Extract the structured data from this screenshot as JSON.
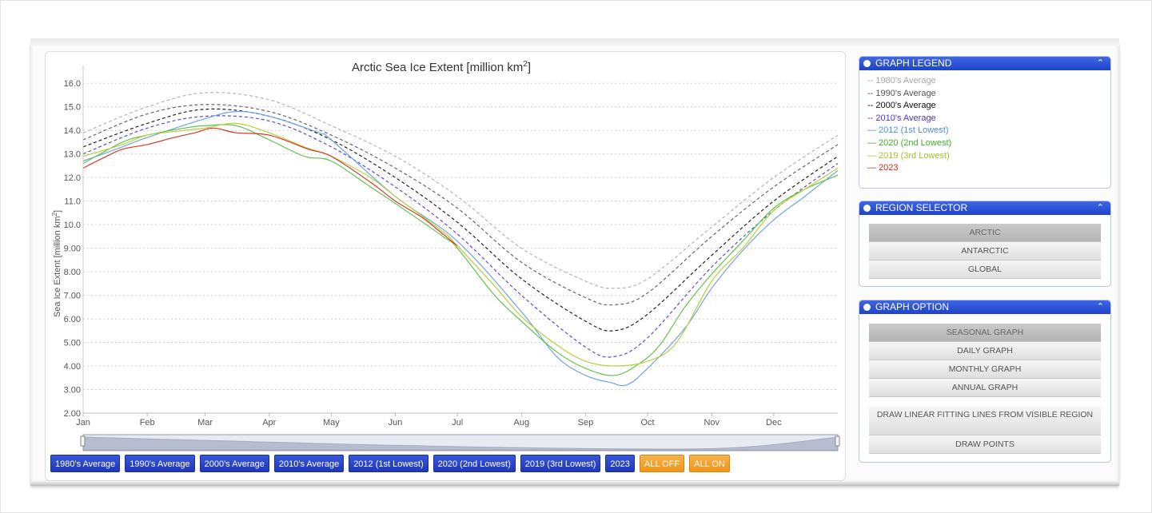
{
  "chart_data": {
    "type": "line",
    "title": "Arctic Sea Ice Extent [million km",
    "title_sup": "2",
    "title_end": "]",
    "ylabel": "Sea Ice Extent [million km",
    "ylabel_sup": "2",
    "ylabel_end": "]",
    "ylim": [
      2,
      16.5
    ],
    "x_range": [
      1,
      366
    ],
    "x_ticks": [
      {
        "day": 1,
        "label": "Jan"
      },
      {
        "day": 32,
        "label": "Feb"
      },
      {
        "day": 60,
        "label": "Mar"
      },
      {
        "day": 91,
        "label": "Apr"
      },
      {
        "day": 121,
        "label": "May"
      },
      {
        "day": 152,
        "label": "Jun"
      },
      {
        "day": 182,
        "label": "Jul"
      },
      {
        "day": 213,
        "label": "Aug"
      },
      {
        "day": 244,
        "label": "Sep"
      },
      {
        "day": 274,
        "label": "Oct"
      },
      {
        "day": 305,
        "label": "Nov"
      },
      {
        "day": 335,
        "label": "Dec"
      }
    ],
    "y_ticks": [
      "2.00",
      "3.00",
      "4.00",
      "5.00",
      "6.00",
      "7.00",
      "8.00",
      "9.00",
      "10.0",
      "11.0",
      "12.0",
      "13.0",
      "14.0",
      "15.0",
      "16.0"
    ],
    "grid": true,
    "series": [
      {
        "name": "1980's Average",
        "color": "#b5b5b5",
        "dashed": true,
        "points": [
          [
            1,
            13.9
          ],
          [
            32,
            15.0
          ],
          [
            60,
            15.6
          ],
          [
            91,
            15.3
          ],
          [
            121,
            14.2
          ],
          [
            152,
            12.9
          ],
          [
            182,
            11.2
          ],
          [
            213,
            9.0
          ],
          [
            244,
            7.6
          ],
          [
            258,
            7.3
          ],
          [
            274,
            7.7
          ],
          [
            305,
            9.9
          ],
          [
            335,
            12.0
          ],
          [
            366,
            13.8
          ]
        ]
      },
      {
        "name": "1990's Average",
        "color": "#666666",
        "dashed": true,
        "points": [
          [
            1,
            13.6
          ],
          [
            32,
            14.7
          ],
          [
            60,
            15.1
          ],
          [
            91,
            14.8
          ],
          [
            121,
            13.8
          ],
          [
            152,
            12.4
          ],
          [
            182,
            10.7
          ],
          [
            213,
            8.4
          ],
          [
            244,
            6.9
          ],
          [
            258,
            6.6
          ],
          [
            274,
            7.1
          ],
          [
            305,
            9.5
          ],
          [
            335,
            11.6
          ],
          [
            366,
            13.4
          ]
        ]
      },
      {
        "name": "2000's Average",
        "color": "#222222",
        "dashed": true,
        "points": [
          [
            1,
            13.3
          ],
          [
            32,
            14.3
          ],
          [
            60,
            14.9
          ],
          [
            91,
            14.6
          ],
          [
            121,
            13.6
          ],
          [
            152,
            12.0
          ],
          [
            182,
            10.1
          ],
          [
            213,
            7.7
          ],
          [
            244,
            5.9
          ],
          [
            258,
            5.5
          ],
          [
            274,
            6.2
          ],
          [
            305,
            8.7
          ],
          [
            335,
            11.0
          ],
          [
            366,
            12.9
          ]
        ]
      },
      {
        "name": "2010's Average",
        "color": "#5b4bd0",
        "dashed": true,
        "points": [
          [
            1,
            13.0
          ],
          [
            32,
            14.1
          ],
          [
            60,
            14.6
          ],
          [
            91,
            14.4
          ],
          [
            121,
            13.3
          ],
          [
            152,
            11.6
          ],
          [
            182,
            9.6
          ],
          [
            213,
            7.0
          ],
          [
            244,
            4.8
          ],
          [
            258,
            4.4
          ],
          [
            274,
            5.2
          ],
          [
            305,
            8.2
          ],
          [
            335,
            10.6
          ],
          [
            366,
            12.6
          ]
        ]
      },
      {
        "name": "2012 (1st Lowest)",
        "color": "#6fa3e6",
        "dashed": false,
        "points": [
          [
            1,
            12.7
          ],
          [
            20,
            13.3
          ],
          [
            32,
            13.7
          ],
          [
            60,
            14.5
          ],
          [
            75,
            14.8
          ],
          [
            91,
            14.6
          ],
          [
            115,
            13.9
          ],
          [
            121,
            13.6
          ],
          [
            152,
            11.2
          ],
          [
            182,
            9.3
          ],
          [
            213,
            6.3
          ],
          [
            230,
            4.4
          ],
          [
            244,
            3.6
          ],
          [
            256,
            3.3
          ],
          [
            264,
            3.2
          ],
          [
            274,
            3.9
          ],
          [
            292,
            5.6
          ],
          [
            305,
            7.3
          ],
          [
            320,
            8.9
          ],
          [
            335,
            10.2
          ],
          [
            350,
            11.2
          ],
          [
            366,
            12.3
          ]
        ]
      },
      {
        "name": "2020 (2nd Lowest)",
        "color": "#62c24d",
        "dashed": false,
        "points": [
          [
            1,
            12.6
          ],
          [
            20,
            13.5
          ],
          [
            32,
            13.8
          ],
          [
            50,
            14.1
          ],
          [
            60,
            14.2
          ],
          [
            75,
            14.2
          ],
          [
            91,
            13.6
          ],
          [
            108,
            12.9
          ],
          [
            121,
            12.7
          ],
          [
            140,
            11.6
          ],
          [
            152,
            10.9
          ],
          [
            175,
            9.5
          ],
          [
            182,
            9.0
          ],
          [
            200,
            7.0
          ],
          [
            213,
            5.9
          ],
          [
            230,
            4.6
          ],
          [
            244,
            3.9
          ],
          [
            258,
            3.6
          ],
          [
            270,
            4.1
          ],
          [
            280,
            4.9
          ],
          [
            292,
            6.5
          ],
          [
            305,
            7.9
          ],
          [
            320,
            9.3
          ],
          [
            335,
            10.7
          ],
          [
            350,
            11.5
          ],
          [
            366,
            12.1
          ]
        ]
      },
      {
        "name": "2019 (3rd Lowest)",
        "color": "#b9cf3c",
        "dashed": false,
        "points": [
          [
            1,
            12.9
          ],
          [
            20,
            13.4
          ],
          [
            32,
            13.8
          ],
          [
            50,
            14.0
          ],
          [
            60,
            14.1
          ],
          [
            75,
            14.3
          ],
          [
            91,
            13.9
          ],
          [
            108,
            13.3
          ],
          [
            121,
            12.9
          ],
          [
            140,
            12.0
          ],
          [
            152,
            11.2
          ],
          [
            175,
            9.7
          ],
          [
            182,
            9.1
          ],
          [
            200,
            7.4
          ],
          [
            213,
            6.1
          ],
          [
            230,
            4.9
          ],
          [
            244,
            4.2
          ],
          [
            258,
            4.0
          ],
          [
            274,
            4.2
          ],
          [
            288,
            5.0
          ],
          [
            305,
            7.6
          ],
          [
            320,
            9.0
          ],
          [
            335,
            10.6
          ],
          [
            350,
            11.5
          ],
          [
            366,
            12.4
          ]
        ]
      },
      {
        "name": "2023",
        "color": "#d33a2c",
        "dashed": false,
        "points": [
          [
            1,
            12.4
          ],
          [
            10,
            12.8
          ],
          [
            20,
            13.2
          ],
          [
            32,
            13.4
          ],
          [
            45,
            13.7
          ],
          [
            55,
            13.9
          ],
          [
            64,
            14.1
          ],
          [
            75,
            13.9
          ],
          [
            91,
            13.8
          ],
          [
            110,
            13.2
          ],
          [
            121,
            12.9
          ],
          [
            140,
            11.8
          ],
          [
            152,
            11.0
          ],
          [
            165,
            10.3
          ],
          [
            175,
            9.6
          ],
          [
            182,
            9.1
          ]
        ]
      }
    ]
  },
  "series_buttons": [
    {
      "label": "1980's Average"
    },
    {
      "label": "1990's Average"
    },
    {
      "label": "2000's Average"
    },
    {
      "label": "2010's Average"
    },
    {
      "label": "2012 (1st Lowest)"
    },
    {
      "label": "2020 (2nd Lowest)"
    },
    {
      "label": "2019 (3rd Lowest)"
    },
    {
      "label": "2023"
    }
  ],
  "all_off_label": "ALL OFF",
  "all_on_label": "ALL ON",
  "legend_panel": {
    "title": "GRAPH LEGEND",
    "items": [
      {
        "label": "-- 1980's Average",
        "color": "#a8a8a8"
      },
      {
        "label": "-- 1990's Average",
        "color": "#555555"
      },
      {
        "label": "-- 2000's Average",
        "color": "#111111"
      },
      {
        "label": "-- 2010's Average",
        "color": "#4a37c9"
      },
      {
        "label": "— 2012 (1st Lowest)",
        "color": "#4f8fde"
      },
      {
        "label": "— 2020 (2nd Lowest)",
        "color": "#3faf2a"
      },
      {
        "label": "— 2019 (3rd Lowest)",
        "color": "#a8c02a"
      },
      {
        "label": "— 2023",
        "color": "#c92d1f"
      }
    ]
  },
  "region_panel": {
    "title": "REGION SELECTOR",
    "options": [
      "ARCTIC",
      "ANTARCTIC",
      "GLOBAL"
    ],
    "selected": "ARCTIC"
  },
  "option_panel": {
    "title": "GRAPH OPTION",
    "options": [
      "SEASONAL GRAPH",
      "DAILY GRAPH",
      "MONTHLY GRAPH",
      "ANNUAL GRAPH"
    ],
    "selected": "SEASONAL GRAPH",
    "extra_options": [
      "DRAW LINEAR FITTING LINES FROM VISIBLE REGION",
      "DRAW POINTS"
    ]
  }
}
